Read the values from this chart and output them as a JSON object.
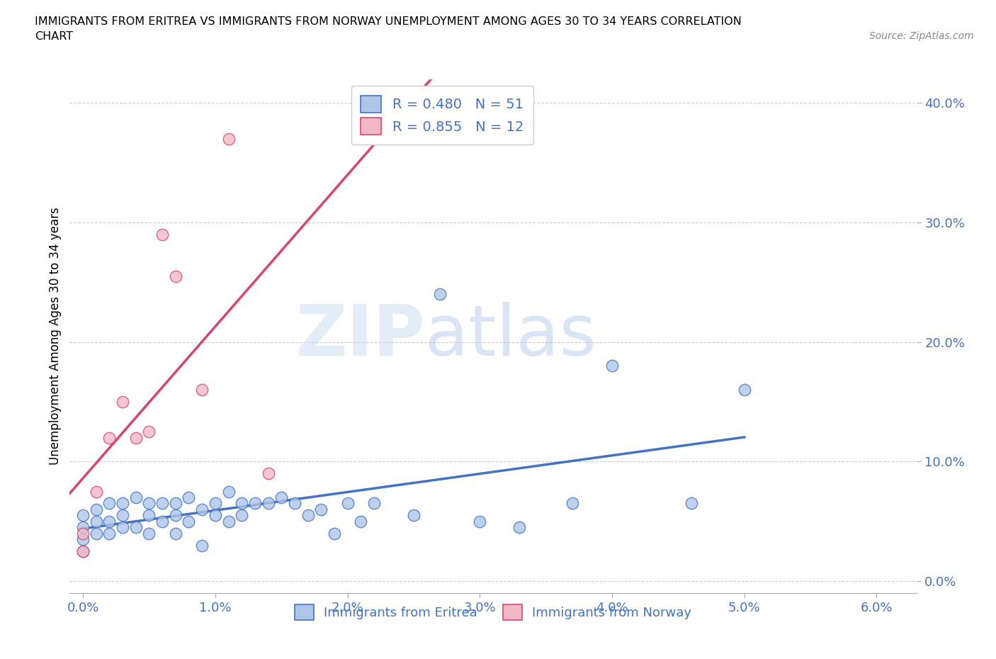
{
  "title_line1": "IMMIGRANTS FROM ERITREA VS IMMIGRANTS FROM NORWAY UNEMPLOYMENT AMONG AGES 30 TO 34 YEARS CORRELATION",
  "title_line2": "CHART",
  "source": "Source: ZipAtlas.com",
  "xlabel_ticks": [
    "0.0%",
    "1.0%",
    "2.0%",
    "3.0%",
    "4.0%",
    "5.0%",
    "6.0%"
  ],
  "ylabel_ticks": [
    "0.0%",
    "10.0%",
    "20.0%",
    "30.0%",
    "40.0%"
  ],
  "xlim": [
    -0.001,
    0.063
  ],
  "ylim": [
    -0.01,
    0.42
  ],
  "ylabel": "Unemployment Among Ages 30 to 34 years",
  "legend_label1": "Immigrants from Eritrea",
  "legend_label2": "Immigrants from Norway",
  "R1": "0.480",
  "N1": "51",
  "R2": "0.855",
  "N2": "12",
  "color_eritrea": "#adc6e8",
  "color_norway": "#f2b8c6",
  "line_color_eritrea": "#4472c4",
  "line_color_norway": "#d9456e",
  "watermark_zip": "ZIP",
  "watermark_atlas": "atlas",
  "eritrea_x": [
    0.0,
    0.0,
    0.0,
    0.0,
    0.001,
    0.001,
    0.001,
    0.002,
    0.002,
    0.002,
    0.003,
    0.003,
    0.003,
    0.004,
    0.004,
    0.005,
    0.005,
    0.005,
    0.006,
    0.006,
    0.007,
    0.007,
    0.007,
    0.008,
    0.008,
    0.009,
    0.009,
    0.01,
    0.01,
    0.011,
    0.011,
    0.012,
    0.012,
    0.013,
    0.014,
    0.015,
    0.016,
    0.017,
    0.018,
    0.019,
    0.02,
    0.021,
    0.022,
    0.025,
    0.027,
    0.03,
    0.033,
    0.037,
    0.04,
    0.046,
    0.05
  ],
  "eritrea_y": [
    0.055,
    0.045,
    0.035,
    0.025,
    0.06,
    0.05,
    0.04,
    0.065,
    0.05,
    0.04,
    0.065,
    0.055,
    0.045,
    0.07,
    0.045,
    0.065,
    0.055,
    0.04,
    0.065,
    0.05,
    0.065,
    0.055,
    0.04,
    0.07,
    0.05,
    0.06,
    0.03,
    0.065,
    0.055,
    0.075,
    0.05,
    0.065,
    0.055,
    0.065,
    0.065,
    0.07,
    0.065,
    0.055,
    0.06,
    0.04,
    0.065,
    0.05,
    0.065,
    0.055,
    0.24,
    0.05,
    0.045,
    0.065,
    0.18,
    0.065,
    0.16
  ],
  "norway_x": [
    0.0,
    0.0,
    0.001,
    0.002,
    0.003,
    0.004,
    0.005,
    0.006,
    0.007,
    0.009,
    0.011,
    0.014
  ],
  "norway_y": [
    0.04,
    0.025,
    0.075,
    0.12,
    0.15,
    0.12,
    0.125,
    0.29,
    0.255,
    0.16,
    0.37,
    0.09
  ]
}
